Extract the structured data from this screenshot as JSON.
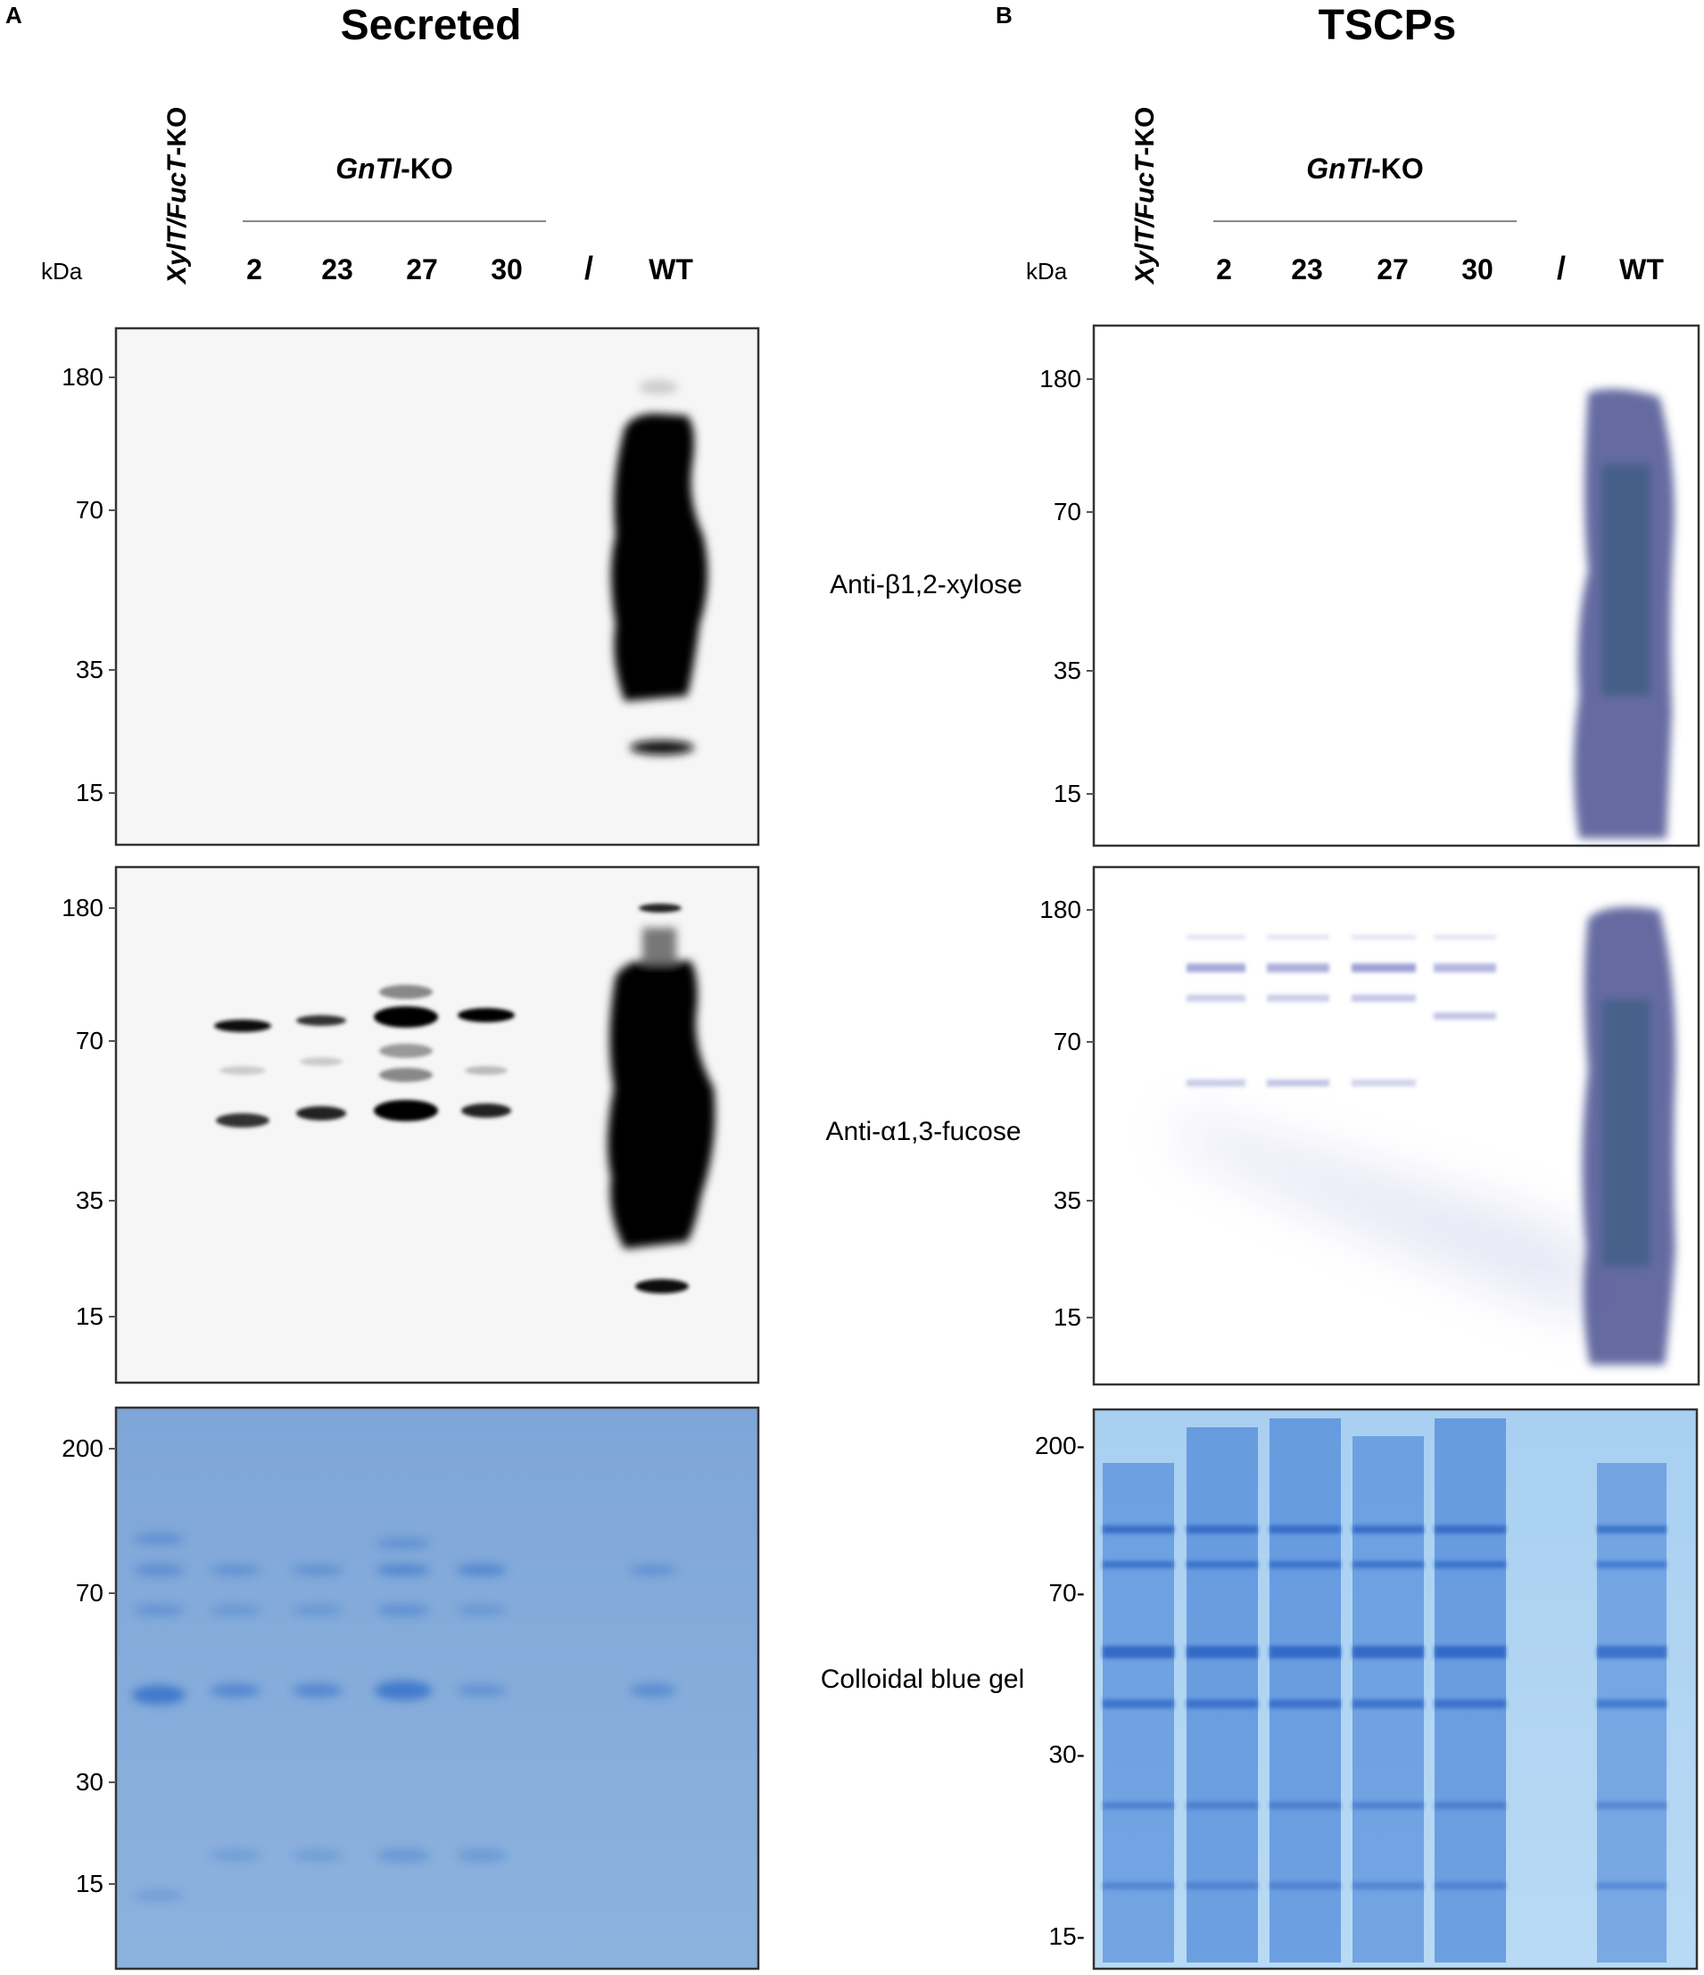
{
  "panels": [
    {
      "letter": "A",
      "title": "Secreted",
      "lane_label_rotated": {
        "italic": "XylT/FucT",
        "plain": "-KO"
      },
      "group_label": {
        "italic": "GnTI",
        "plain": "-KO"
      },
      "kda_label": "kDa",
      "lanes": [
        "2",
        "23",
        "27",
        "30",
        "/",
        "WT"
      ],
      "blot1_markers": [
        "180",
        "70",
        "35",
        "15"
      ],
      "blot2_markers": [
        "180",
        "70",
        "35",
        "15"
      ],
      "gel_markers": [
        "200",
        "70",
        "30",
        "15"
      ]
    },
    {
      "letter": "B",
      "title": "TSCPs",
      "lane_label_rotated": {
        "italic": "XylT/FucT",
        "plain": "-KO"
      },
      "group_label": {
        "italic": "GnTI",
        "plain": "-KO"
      },
      "kda_label": "kDa",
      "lanes": [
        "2",
        "23",
        "27",
        "30",
        "/",
        "WT"
      ],
      "blot1_markers": [
        "180",
        "70",
        "35",
        "15"
      ],
      "blot2_markers": [
        "180",
        "70",
        "35",
        "15"
      ],
      "gel_markers": [
        "200-",
        "70-",
        "30-",
        "15-"
      ]
    }
  ],
  "row_labels": [
    "Anti-β1,2-xylose",
    "Anti-α1,3-fucose",
    "Colloidal blue gel"
  ],
  "colors": {
    "blot_a": "#000000",
    "blot_b": "#4a5190",
    "gel": "#3f7fd6"
  }
}
